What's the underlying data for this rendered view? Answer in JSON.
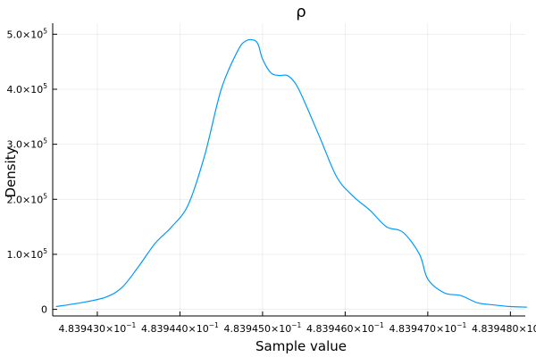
{
  "chart_data": {
    "type": "line",
    "title": "ρ",
    "xlabel": "Sample value",
    "ylabel": "Density",
    "xlim": [
      0.48394246,
      0.48394818
    ],
    "ylim": [
      -12000,
      520000
    ],
    "grid": true,
    "legend": "none",
    "x_ticks": [
      {
        "value": 0.483943,
        "mantissa": "4.839430",
        "times": "×10",
        "exp": "−1"
      },
      {
        "value": 0.483944,
        "mantissa": "4.839440",
        "times": "×10",
        "exp": "−1"
      },
      {
        "value": 0.483945,
        "mantissa": "4.839450",
        "times": "×10",
        "exp": "−1"
      },
      {
        "value": 0.483946,
        "mantissa": "4.839460",
        "times": "×10",
        "exp": "−1"
      },
      {
        "value": 0.483947,
        "mantissa": "4.839470",
        "times": "×10",
        "exp": "−1"
      },
      {
        "value": 0.483948,
        "mantissa": "4.839480",
        "times": "×10",
        "exp": "−1"
      }
    ],
    "y_ticks": [
      {
        "value": 0,
        "mantissa": "0",
        "times": "",
        "exp": ""
      },
      {
        "value": 100000,
        "mantissa": "1.0",
        "times": "×10",
        "exp": "5"
      },
      {
        "value": 200000,
        "mantissa": "2.0",
        "times": "×10",
        "exp": "5"
      },
      {
        "value": 300000,
        "mantissa": "3.0",
        "times": "×10",
        "exp": "5"
      },
      {
        "value": 400000,
        "mantissa": "4.0",
        "times": "×10",
        "exp": "5"
      },
      {
        "value": 500000,
        "mantissa": "5.0",
        "times": "×10",
        "exp": "5"
      }
    ],
    "series": [
      {
        "color": "#009AFA",
        "x": [
          0.4839425,
          0.4839428,
          0.4839431,
          0.4839433,
          0.4839435,
          0.4839437,
          0.4839439,
          0.4839441,
          0.4839443,
          0.4839445,
          0.4839447,
          0.4839448,
          0.4839449,
          0.48394495,
          0.483945,
          0.4839451,
          0.4839452,
          0.4839453,
          0.4839454,
          0.4839455,
          0.4839457,
          0.4839459,
          0.4839461,
          0.4839463,
          0.4839465,
          0.4839467,
          0.4839469,
          0.483947,
          0.4839472,
          0.4839474,
          0.4839476,
          0.4839478,
          0.483948,
          0.4839482
        ],
        "y": [
          5000,
          12000,
          22000,
          40000,
          78000,
          120000,
          150000,
          190000,
          280000,
          400000,
          470000,
          488000,
          489000,
          480000,
          455000,
          430000,
          425000,
          425000,
          410000,
          380000,
          310000,
          240000,
          205000,
          180000,
          150000,
          140000,
          100000,
          55000,
          30000,
          25000,
          12000,
          8000,
          5000,
          4000
        ]
      }
    ]
  }
}
